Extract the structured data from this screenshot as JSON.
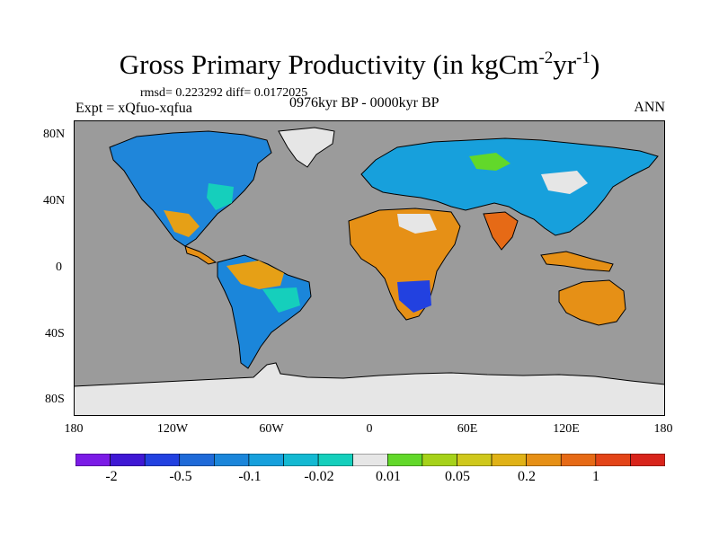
{
  "title": {
    "prefix": "Gross Primary Productivity (in kgCm",
    "sup1": "-2",
    "mid": "yr",
    "sup2": "-1",
    "suffix": ")"
  },
  "stats_line": "rmsd= 0.223292 diff= 0.0172025",
  "experiment_label": "Expt = xQfuo-xqfua",
  "period_label": "0976kyr BP - 0000kyr BP",
  "season_label": "ANN",
  "map": {
    "lat_ticks": [
      "80N",
      "40N",
      "0",
      "40S",
      "80S"
    ],
    "lon_ticks": [
      "180",
      "120W",
      "60W",
      "0",
      "60E",
      "120E",
      "180"
    ],
    "colors": {
      "ocean": "#9b9b9b",
      "ice": "#e6e6e6",
      "coastline": "#000000"
    }
  },
  "colorbar": {
    "colors": [
      "#7b1be6",
      "#3f18d4",
      "#2241e0",
      "#1f6ad8",
      "#1b86da",
      "#17a0dc",
      "#14b9d2",
      "#15cfbc",
      "#e6e6e6",
      "#62d82a",
      "#a6d21a",
      "#cfc81c",
      "#e0b217",
      "#e69016",
      "#e66a16",
      "#e34418",
      "#d8241b"
    ],
    "labels": [
      "-2",
      "-0.5",
      "-0.1",
      "-0.02",
      "0.01",
      "0.05",
      "0.2",
      "1"
    ]
  }
}
